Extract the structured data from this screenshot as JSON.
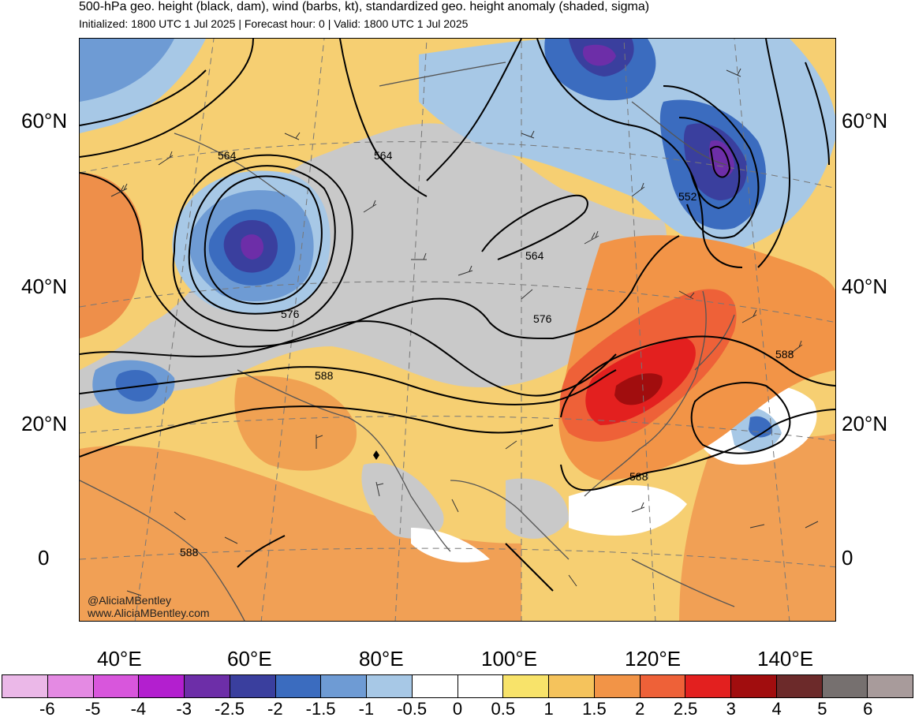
{
  "title": "500-hPa geo. height (black, dam), wind (barbs, kt), standardized geo. height anomaly (shaded, sigma)",
  "subtitle": "Initialized: 1800 UTC 1 Jul 2025 | Forecast hour: 0 | Valid: 1800 UTC 1 Jul 2025",
  "lat_labels": [
    "60°N",
    "40°N",
    "20°N",
    "0"
  ],
  "lon_labels": [
    "40°E",
    "60°E",
    "80°E",
    "100°E",
    "120°E",
    "140°E"
  ],
  "contour_labels": [
    "564",
    "564",
    "552",
    "564",
    "576",
    "576",
    "588",
    "588",
    "588",
    "588"
  ],
  "credit": {
    "handle": "@AliciaMBentley",
    "site": "www.AliciaMBentley.com"
  },
  "colorbar": {
    "labels": [
      "-6",
      "-5",
      "-4",
      "-3",
      "-2.5",
      "-2",
      "-1.5",
      "-1",
      "-0.5",
      "0",
      "0.5",
      "1",
      "1.5",
      "2",
      "2.5",
      "3",
      "4",
      "5",
      "6"
    ],
    "colors": [
      "#ebb8e8",
      "#e48ae3",
      "#d856dc",
      "#b31fcf",
      "#6d2ea8",
      "#3a3f9e",
      "#3b6cbf",
      "#6e9bd4",
      "#a7c8e6",
      "#ffffff",
      "#ffffff",
      "#f8e36a",
      "#f5c35c",
      "#f29447",
      "#ee6138",
      "#e3201f",
      "#a10d0e",
      "#6c2a2a",
      "#76706f",
      "#a89b9b"
    ]
  }
}
